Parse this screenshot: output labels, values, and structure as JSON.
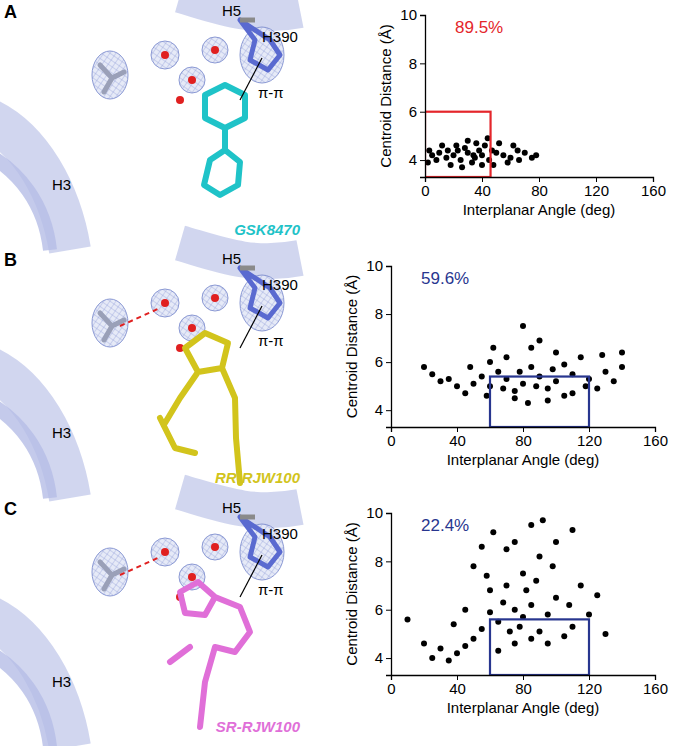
{
  "chart_data": [
    {
      "type": "scatter",
      "panel": "A",
      "ligand": {
        "name": "GSK8470",
        "color": "#1fc3c8"
      },
      "annotations": [
        "H5",
        "H390",
        "π-π",
        "H3"
      ],
      "x_label": "Interplanar Angle (deg)",
      "y_label": "Centroid Distance (Å)",
      "xlim": [
        0,
        160
      ],
      "xticks": [
        0,
        40,
        80,
        120,
        160
      ],
      "ylim": [
        3.3,
        10
      ],
      "yticks": [
        4,
        6,
        8,
        10
      ],
      "marker": "circle",
      "color": "#000000",
      "x": [
        20,
        25,
        30,
        35,
        40,
        15,
        10,
        45,
        28,
        33,
        38,
        22,
        18,
        42,
        50,
        55,
        60,
        65,
        8,
        5,
        48,
        52,
        26,
        36,
        58,
        70,
        75,
        12,
        44,
        30,
        62,
        3,
        2,
        47,
        23,
        34,
        16,
        40,
        66,
        78
      ],
      "y": [
        4.2,
        4.0,
        4.3,
        4.1,
        4.2,
        4.1,
        4.3,
        4.0,
        4.5,
        3.9,
        4.4,
        4.6,
        3.8,
        4.6,
        4.3,
        4.2,
        4.1,
        4.4,
        4.0,
        4.2,
        3.8,
        4.7,
        3.7,
        4.7,
        3.9,
        4.3,
        4.1,
        4.6,
        4.9,
        4.8,
        4.6,
        4.4,
        3.9,
        4.4,
        4.4,
        4.2,
        4.4,
        3.8,
        4.0,
        4.2
      ],
      "region": {
        "x": [
          0,
          46
        ],
        "y": [
          3.3,
          6.0
        ],
        "value": 89.5,
        "value_label": "89.5%",
        "color": "#e4262b"
      }
    },
    {
      "type": "scatter",
      "panel": "B",
      "ligand": {
        "name": "RR-RJW100",
        "color": "#d2c41c"
      },
      "annotations": [
        "H5",
        "H390",
        "π-π",
        "H3"
      ],
      "x_label": "Interplanar Angle (deg)",
      "y_label": "Centroid Distance (Å)",
      "xlim": [
        0,
        160
      ],
      "xticks": [
        0,
        40,
        80,
        120,
        160
      ],
      "ylim": [
        3.3,
        10
      ],
      "yticks": [
        4,
        6,
        8,
        10
      ],
      "marker": "circle",
      "color": "#000000",
      "x": [
        60,
        70,
        80,
        90,
        100,
        110,
        65,
        75,
        85,
        95,
        105,
        120,
        130,
        55,
        50,
        45,
        40,
        35,
        30,
        25,
        20,
        115,
        100,
        85,
        70,
        60,
        90,
        80,
        75,
        95,
        110,
        125,
        135,
        140,
        88,
        78,
        68,
        58,
        48,
        98,
        118,
        128,
        105,
        83,
        62,
        140
      ],
      "y": [
        5.0,
        5.3,
        5.1,
        5.4,
        5.2,
        5.5,
        5.6,
        4.8,
        5.8,
        4.9,
        5.9,
        5.3,
        5.6,
        5.4,
        5.1,
        4.7,
        5.0,
        5.3,
        5.2,
        5.5,
        5.8,
        6.2,
        6.4,
        6.6,
        6.2,
        6.0,
        6.9,
        7.5,
        4.5,
        4.4,
        4.7,
        4.9,
        5.2,
        5.8,
        5.0,
        5.6,
        4.9,
        4.6,
        5.8,
        5.7,
        5.0,
        6.3,
        4.6,
        4.3,
        6.6,
        6.4
      ],
      "region": {
        "x": [
          60,
          120
        ],
        "y": [
          3.3,
          5.4
        ],
        "value": 59.6,
        "value_label": "59.6%",
        "color": "#28368f"
      }
    },
    {
      "type": "scatter",
      "panel": "C",
      "ligand": {
        "name": "SR-RJW100",
        "color": "#e06fd8"
      },
      "annotations": [
        "H5",
        "H390",
        "π-π",
        "H3"
      ],
      "x_label": "Interplanar Angle (deg)",
      "y_label": "Centroid Distance (Å)",
      "xlim": [
        0,
        160
      ],
      "xticks": [
        0,
        40,
        80,
        120,
        160
      ],
      "ylim": [
        3.3,
        10
      ],
      "yticks": [
        4,
        6,
        8,
        10
      ],
      "marker": "circle",
      "color": "#000000",
      "x": [
        75,
        65,
        85,
        95,
        70,
        80,
        90,
        75,
        85,
        60,
        55,
        50,
        45,
        40,
        35,
        30,
        25,
        20,
        10,
        100,
        110,
        120,
        130,
        105,
        95,
        85,
        78,
        68,
        58,
        88,
        98,
        70,
        62,
        92,
        80,
        72,
        100,
        115,
        125,
        45,
        50,
        38,
        65,
        82,
        108,
        60,
        90,
        75,
        55,
        110
      ],
      "y": [
        6.0,
        5.5,
        6.2,
        5.8,
        7.0,
        7.5,
        8.2,
        8.8,
        9.5,
        6.8,
        5.2,
        4.8,
        4.5,
        4.2,
        3.9,
        4.4,
        4.0,
        4.6,
        5.6,
        6.5,
        5.3,
        5.8,
        5.0,
        4.9,
        4.6,
        4.8,
        5.3,
        6.3,
        7.4,
        7.2,
        7.8,
        8.5,
        9.2,
        9.7,
        5.7,
        5.1,
        8.8,
        7.0,
        6.6,
        6.0,
        7.8,
        5.4,
        4.3,
        6.8,
        6.2,
        5.9,
        5.1,
        4.6,
        8.6,
        9.3
      ],
      "region": {
        "x": [
          60,
          120
        ],
        "y": [
          3.3,
          5.6
        ],
        "value": 22.4,
        "value_label": "22.4%",
        "color": "#28368f"
      }
    }
  ]
}
